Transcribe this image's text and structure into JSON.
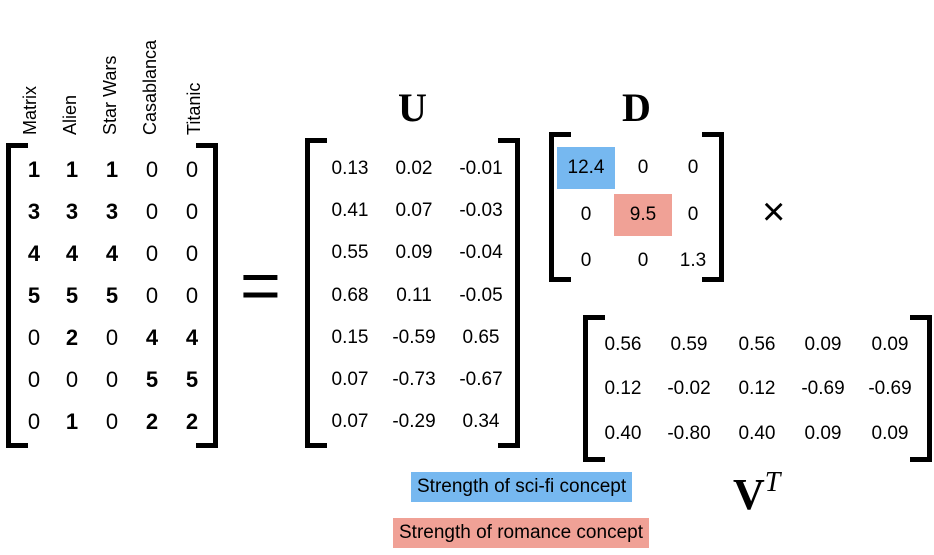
{
  "colors": {
    "scifi": "#76b8f0",
    "romance": "#f0a196"
  },
  "movies": [
    "Matrix",
    "Alien",
    "Star Wars",
    "Casablanca",
    "Titanic"
  ],
  "A": [
    [
      "1",
      "1",
      "1",
      "0",
      "0"
    ],
    [
      "3",
      "3",
      "3",
      "0",
      "0"
    ],
    [
      "4",
      "4",
      "4",
      "0",
      "0"
    ],
    [
      "5",
      "5",
      "5",
      "0",
      "0"
    ],
    [
      "0",
      "2",
      "0",
      "4",
      "4"
    ],
    [
      "0",
      "0",
      "0",
      "5",
      "5"
    ],
    [
      "0",
      "1",
      "0",
      "2",
      "2"
    ]
  ],
  "equals": "=",
  "times": "×",
  "U": {
    "label": "U",
    "rows": [
      [
        "0.13",
        "0.02",
        "-0.01"
      ],
      [
        "0.41",
        "0.07",
        "-0.03"
      ],
      [
        "0.55",
        "0.09",
        "-0.04"
      ],
      [
        "0.68",
        "0.11",
        "-0.05"
      ],
      [
        "0.15",
        "-0.59",
        "0.65"
      ],
      [
        "0.07",
        "-0.73",
        "-0.67"
      ],
      [
        "0.07",
        "-0.29",
        "0.34"
      ]
    ]
  },
  "D": {
    "label": "D",
    "rows": [
      [
        "12.4",
        "0",
        "0"
      ],
      [
        "0",
        "9.5",
        "0"
      ],
      [
        "0",
        "0",
        "1.3"
      ]
    ]
  },
  "VT": {
    "label": "V",
    "superscript": "T",
    "rows": [
      [
        "0.56",
        "0.59",
        "0.56",
        "0.09",
        "0.09"
      ],
      [
        "0.12",
        "-0.02",
        "0.12",
        "-0.69",
        "-0.69"
      ],
      [
        "0.40",
        "-0.80",
        "0.40",
        "0.09",
        "0.09"
      ]
    ]
  },
  "legend": {
    "scifi": "Strength of sci-fi concept",
    "romance": "Strength of romance concept"
  }
}
